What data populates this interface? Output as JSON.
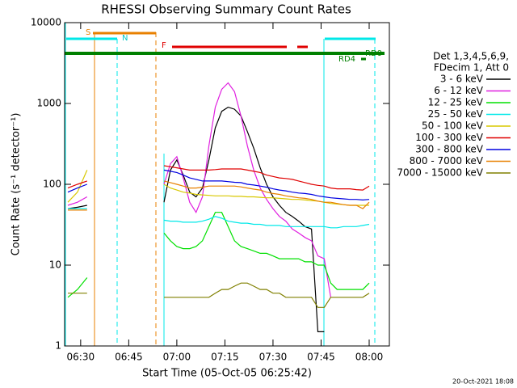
{
  "chart_data": {
    "type": "line",
    "title": "RHESSI Observing Summary Count Rates",
    "x_label": "Start Time (05-Oct-05 06:25:42)",
    "y_label": "Count Rate (s⁻¹ detector⁻¹)",
    "ylog": true,
    "xlim": [
      385,
      486.3
    ],
    "ylim": [
      1,
      10000
    ],
    "xticks": [
      {
        "value": 390,
        "label": "06:30"
      },
      {
        "value": 405,
        "label": "06:45"
      },
      {
        "value": 420,
        "label": "07:00"
      },
      {
        "value": 435,
        "label": "07:15"
      },
      {
        "value": 450,
        "label": "07:30"
      },
      {
        "value": 465,
        "label": "07:45"
      },
      {
        "value": 480,
        "label": "08:00"
      }
    ],
    "yticks": [
      1,
      10,
      100,
      1000,
      10000
    ],
    "legend_header": [
      "Det 1,3,4,5,6,9,",
      "FDecim 1, Att 0"
    ],
    "annotations": [
      "S",
      "N",
      "F",
      "RD0",
      "RD4"
    ],
    "footer": "20-Oct-2021 18:08",
    "x": [
      386,
      389,
      392,
      404,
      416,
      418,
      420,
      422,
      424,
      426,
      428,
      430,
      432,
      434,
      436,
      438,
      440,
      442,
      444,
      446,
      448,
      450,
      452,
      454,
      456,
      458,
      460,
      462,
      464,
      466,
      468,
      470,
      472,
      474,
      476,
      478,
      480,
      481
    ],
    "series": [
      {
        "name": "3 - 6 keV",
        "color": "#000000",
        "values": [
          50,
          52,
          55,
          null,
          60,
          150,
          200,
          130,
          80,
          70,
          90,
          200,
          500,
          800,
          900,
          850,
          700,
          450,
          280,
          160,
          100,
          70,
          55,
          45,
          40,
          35,
          30,
          28,
          1.5,
          1.5,
          null,
          null,
          null,
          null,
          null,
          null,
          null,
          null
        ]
      },
      {
        "name": "6 - 12 keV",
        "color": "#e020e0",
        "values": [
          55,
          60,
          70,
          null,
          100,
          180,
          220,
          120,
          60,
          45,
          70,
          300,
          900,
          1500,
          1800,
          1400,
          700,
          300,
          150,
          90,
          65,
          50,
          40,
          35,
          28,
          25,
          22,
          20,
          13,
          12,
          4,
          null,
          null,
          null,
          null,
          null,
          null,
          null
        ]
      },
      {
        "name": "12 - 25 keV",
        "color": "#00e000",
        "values": [
          4,
          5,
          7,
          null,
          25,
          20,
          17,
          16,
          16,
          17,
          20,
          30,
          45,
          45,
          30,
          20,
          17,
          16,
          15,
          14,
          14,
          13,
          12,
          12,
          12,
          12,
          11,
          11,
          10,
          10,
          6,
          5,
          5,
          5,
          5,
          5,
          6,
          null
        ]
      },
      {
        "name": "25 - 50 keV",
        "color": "#00e8e8",
        "values": [
          50,
          50,
          50,
          null,
          36,
          35,
          35,
          34,
          34,
          34,
          35,
          37,
          40,
          38,
          35,
          34,
          33,
          33,
          32,
          32,
          31,
          31,
          31,
          30,
          30,
          30,
          30,
          30,
          30,
          30,
          29,
          29,
          30,
          30,
          30,
          31,
          32,
          null
        ]
      },
      {
        "name": "50 - 100 keV",
        "color": "#d8c800",
        "values": [
          60,
          80,
          150,
          null,
          100,
          90,
          85,
          80,
          78,
          75,
          74,
          73,
          72,
          72,
          72,
          71,
          71,
          70,
          70,
          69,
          68,
          68,
          67,
          66,
          65,
          65,
          64,
          63,
          62,
          60,
          58,
          57,
          56,
          55,
          55,
          55,
          55,
          null
        ]
      },
      {
        "name": "100 - 300 keV",
        "color": "#e00000",
        "values": [
          90,
          100,
          110,
          null,
          170,
          165,
          160,
          155,
          150,
          150,
          150,
          150,
          152,
          155,
          155,
          155,
          155,
          150,
          145,
          140,
          130,
          125,
          120,
          118,
          115,
          110,
          105,
          100,
          97,
          95,
          90,
          88,
          88,
          88,
          86,
          85,
          95,
          null
        ]
      },
      {
        "name": "300 - 800 keV",
        "color": "#0000e0",
        "values": [
          80,
          90,
          100,
          null,
          150,
          145,
          140,
          130,
          120,
          115,
          110,
          110,
          110,
          110,
          108,
          106,
          105,
          100,
          98,
          95,
          92,
          88,
          85,
          83,
          80,
          78,
          77,
          75,
          72,
          70,
          68,
          67,
          66,
          65,
          65,
          64,
          65,
          null
        ]
      },
      {
        "name": "800 - 7000 keV",
        "color": "#e88000",
        "values": [
          48,
          48,
          48,
          null,
          110,
          105,
          100,
          95,
          90,
          90,
          92,
          95,
          95,
          95,
          95,
          95,
          93,
          90,
          87,
          85,
          80,
          77,
          75,
          72,
          70,
          68,
          67,
          65,
          62,
          60,
          60,
          58,
          56,
          55,
          55,
          50,
          60,
          null
        ]
      },
      {
        "name": "7000 - 15000 keV",
        "color": "#808000",
        "values": [
          4.5,
          4.5,
          4.5,
          null,
          4,
          4,
          4,
          4,
          4,
          4,
          4,
          4,
          4.5,
          5,
          5,
          5.5,
          6,
          6,
          5.5,
          5,
          5,
          4.5,
          4.5,
          4,
          4,
          4,
          4,
          4,
          3,
          3,
          4,
          4,
          4,
          4,
          4,
          4,
          4.5,
          null
        ]
      }
    ]
  }
}
